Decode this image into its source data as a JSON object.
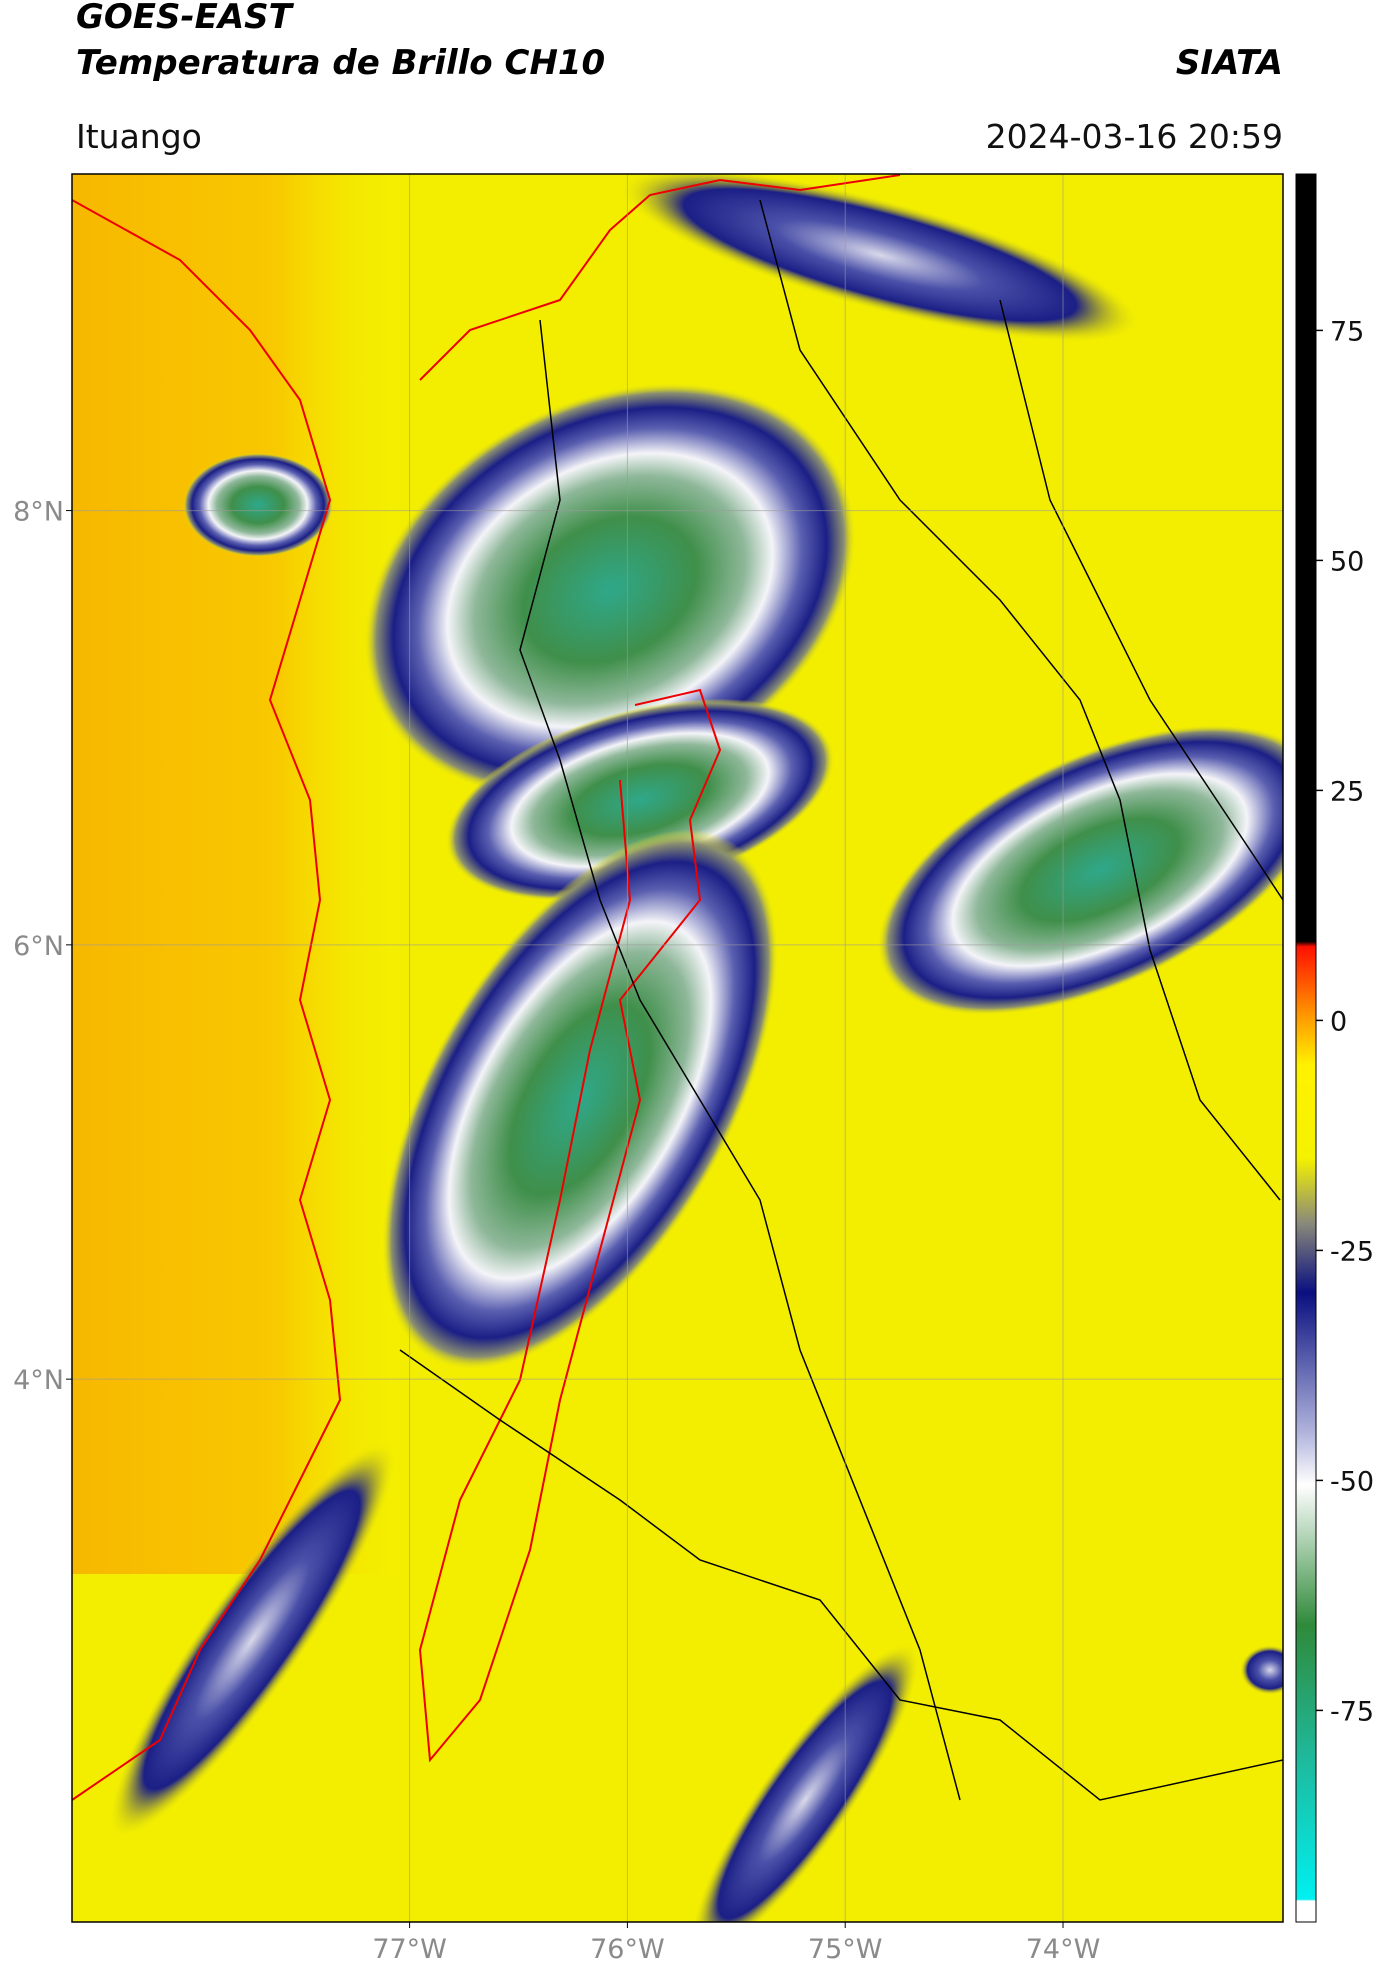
{
  "header": {
    "title": "GOES-EAST",
    "subtitle": "Temperatura de Brillo CH10",
    "source": "SIATA",
    "region": "Ituango",
    "timestamp": "2024-03-16 20:59"
  },
  "map": {
    "lat_range": [
      1.5,
      9.55
    ],
    "lon_range": [
      -78.55,
      -72.99
    ],
    "lat_ticks": [
      {
        "value": 8,
        "label": "8°N"
      },
      {
        "value": 6,
        "label": "6°N"
      },
      {
        "value": 4,
        "label": "4°N"
      }
    ],
    "lon_ticks": [
      {
        "value": -77,
        "label": "77°W"
      },
      {
        "value": -76,
        "label": "76°W"
      },
      {
        "value": -75,
        "label": "75°W"
      },
      {
        "value": -74,
        "label": "74°W"
      }
    ],
    "grid": true
  },
  "colorbar": {
    "range": [
      -98,
      92
    ],
    "ticks": [
      75,
      50,
      25,
      0,
      -25,
      -50,
      -75
    ]
  }
}
